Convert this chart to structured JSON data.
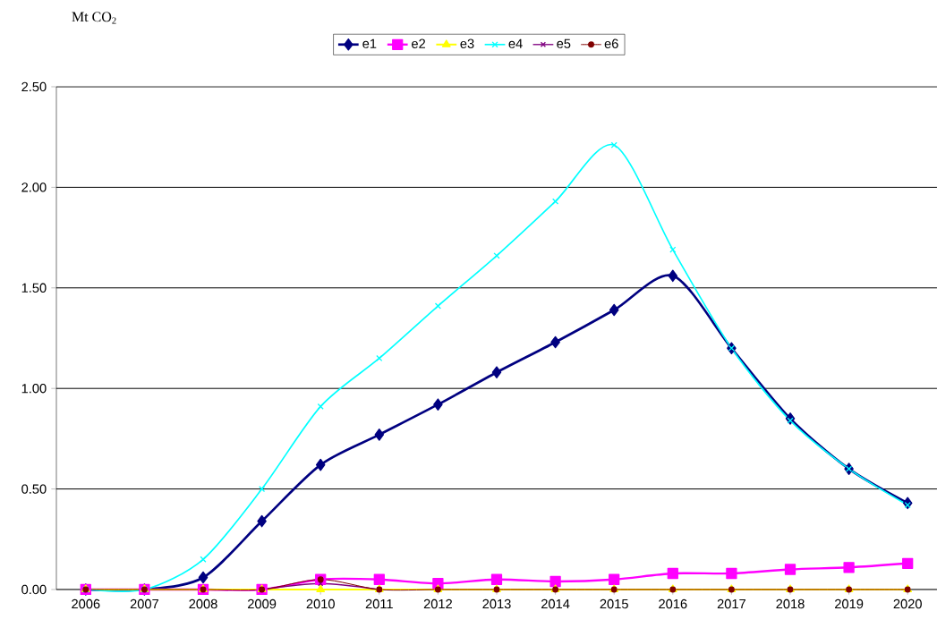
{
  "chart_data": {
    "type": "line",
    "ylabel": "Mt CO$_{2}$",
    "categories": [
      "2006",
      "2007",
      "2008",
      "2009",
      "2010",
      "2011",
      "2012",
      "2013",
      "2014",
      "2015",
      "2016",
      "2017",
      "2018",
      "2019",
      "2020"
    ],
    "series": [
      {
        "name": "e1",
        "color": "#000080",
        "marker": "diamond",
        "values": [
          0,
          0,
          0.06,
          0.34,
          0.62,
          0.77,
          0.92,
          1.08,
          1.23,
          1.39,
          1.56,
          1.2,
          0.85,
          0.6,
          0.43
        ]
      },
      {
        "name": "e2",
        "color": "#ff00ff",
        "marker": "square",
        "values": [
          0,
          0,
          0,
          0,
          0.05,
          0.05,
          0.03,
          0.05,
          0.04,
          0.05,
          0.08,
          0.08,
          0.1,
          0.11,
          0.13
        ]
      },
      {
        "name": "e3",
        "color": "#ffff00",
        "marker": "triangle",
        "values": [
          0,
          0,
          0,
          0,
          0,
          0,
          0,
          0,
          0,
          0,
          0,
          0,
          0,
          0,
          0
        ]
      },
      {
        "name": "e4",
        "color": "#00ffff",
        "marker": "cross",
        "values": [
          0,
          0,
          0.15,
          0.5,
          0.91,
          1.15,
          1.41,
          1.66,
          1.93,
          2.21,
          1.69,
          1.2,
          0.84,
          0.6,
          0.42
        ]
      },
      {
        "name": "e5",
        "color": "#800080",
        "marker": "cross",
        "values": [
          null,
          null,
          null,
          0,
          0.03,
          0,
          null,
          null,
          null,
          null,
          null,
          null,
          null,
          null,
          null
        ]
      },
      {
        "name": "e6",
        "color": "#800000",
        "marker": "circle",
        "values": [
          0,
          0,
          0,
          0,
          0.05,
          0,
          0,
          0,
          0,
          0,
          0,
          0,
          0,
          0,
          0
        ]
      }
    ],
    "ylim": [
      0,
      2.5
    ],
    "yticks": [
      {
        "value": 0,
        "label": "0.00"
      },
      {
        "value": 0.5,
        "label": "0.50"
      },
      {
        "value": 1,
        "label": "1.00"
      },
      {
        "value": 1.5,
        "label": "1.50"
      },
      {
        "value": 2,
        "label": "2.00"
      },
      {
        "value": 2.5,
        "label": "2.50"
      }
    ],
    "grid": "y",
    "legend": "top",
    "line_style": "solid"
  }
}
